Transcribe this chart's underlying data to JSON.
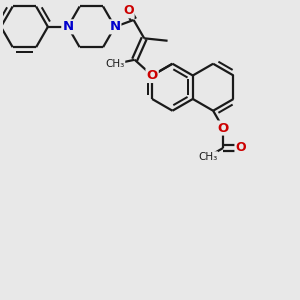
{
  "bg_color": "#e8e8e8",
  "bond_color": "#1a1a1a",
  "bond_width": 1.6,
  "atom_colors": {
    "O": "#cc0000",
    "N": "#0000cc",
    "C": "#1a1a1a"
  },
  "font_size": 9.5
}
